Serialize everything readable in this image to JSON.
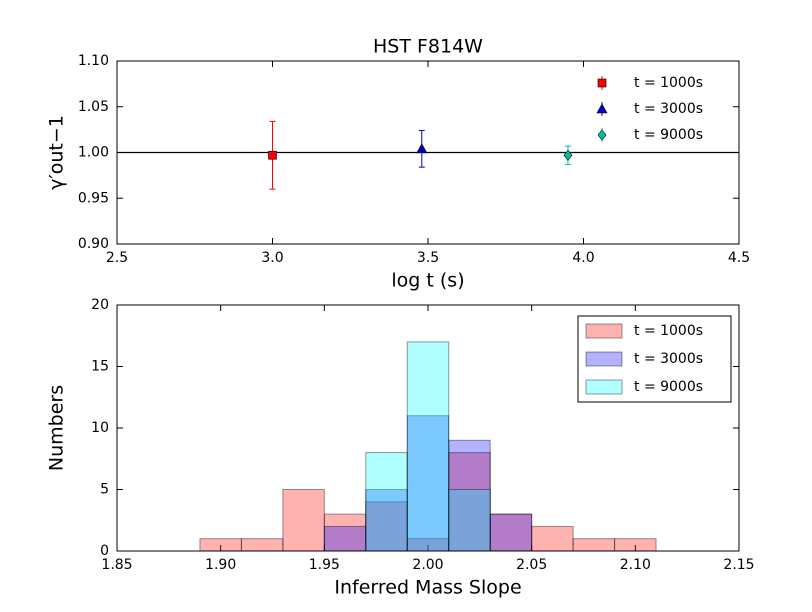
{
  "chart_data": [
    {
      "type": "errorbar",
      "title": "HST F814W",
      "xlabel": "log t (s)",
      "ylabel": "γ′out−1",
      "xlim": [
        2.5,
        4.5
      ],
      "xticks": [
        2.5,
        {
          "value": 3,
          "label": "3.0"
        },
        3.5,
        {
          "value": 4,
          "label": "4.0"
        },
        4.5
      ],
      "ylim": [
        0.9,
        1.1
      ],
      "yticks": [
        {
          "value": 0.9,
          "label": "0.90"
        },
        0.95,
        {
          "value": 1,
          "label": "1.00"
        },
        1.05,
        {
          "value": 1.1,
          "label": "1.10"
        }
      ],
      "hline": 1,
      "legend": "upper right",
      "series": [
        {
          "name": "t = 1000s",
          "color": "#ff0000",
          "marker": "square",
          "x": [
            3.0
          ],
          "values": [
            0.997
          ],
          "errors": [
            0.037
          ]
        },
        {
          "name": "t = 3000s",
          "color": "#0000cc",
          "marker": "triangle",
          "x": [
            3.48
          ],
          "values": [
            1.004
          ],
          "errors": [
            0.02
          ]
        },
        {
          "name": "t = 9000s",
          "color": "#00bfa5",
          "marker": "diamond",
          "x": [
            3.95
          ],
          "values": [
            0.997
          ],
          "errors": [
            0.01
          ]
        }
      ]
    },
    {
      "type": "histogram",
      "xlabel": "Inferred Mass Slope",
      "ylabel": "Numbers",
      "xlim": [
        1.85,
        2.15
      ],
      "xticks": [
        1.85,
        {
          "value": 1.9,
          "label": "1.90"
        },
        1.95,
        {
          "value": 2,
          "label": "2.00"
        },
        2.05,
        {
          "value": 2.1,
          "label": "2.10"
        },
        2.15
      ],
      "ylim": [
        0,
        20
      ],
      "yticks": [
        0,
        5,
        10,
        15,
        20
      ],
      "legend": "upper right",
      "alpha": 0.3,
      "bins": [
        1.85,
        1.87,
        1.89,
        1.91,
        1.93,
        1.95,
        1.97,
        1.99,
        2.01,
        2.03,
        2.05,
        2.07,
        2.09,
        2.11,
        2.13
      ],
      "series": [
        {
          "name": "t = 1000s",
          "color": "#ff0000",
          "values": [
            0,
            0,
            1,
            1,
            5,
            3,
            4,
            1,
            8,
            3,
            2,
            1,
            1,
            0
          ]
        },
        {
          "name": "t = 3000s",
          "color": "#0000ff",
          "values": [
            0,
            0,
            0,
            0,
            0,
            2,
            5,
            11,
            9,
            3,
            0,
            0,
            0,
            0
          ]
        },
        {
          "name": "t = 9000s",
          "color": "#00ffff",
          "values": [
            0,
            0,
            0,
            0,
            0,
            0,
            8,
            17,
            5,
            0,
            0,
            0,
            0,
            0
          ]
        }
      ]
    }
  ]
}
